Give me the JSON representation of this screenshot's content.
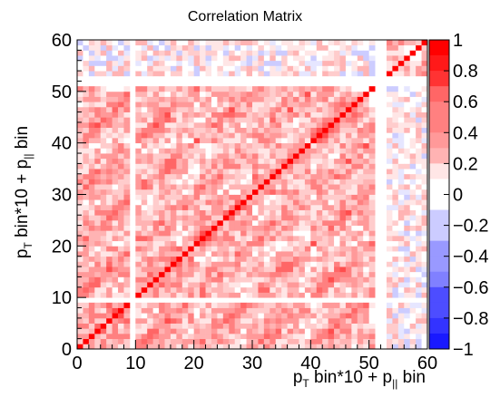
{
  "chart_data": {
    "type": "heatmap",
    "title": "Correlation Matrix",
    "xlabel": {
      "pre": "p",
      "sub1": "T",
      "mid": " bin*10 + p",
      "sub2": "||",
      "post": " bin"
    },
    "ylabel": {
      "pre": "p",
      "sub1": "T",
      "mid": " bin*10 + p",
      "sub2": "||",
      "post": " bin"
    },
    "x_ticks": [
      "0",
      "10",
      "20",
      "30",
      "40",
      "50",
      "60"
    ],
    "y_ticks": [
      "0",
      "10",
      "20",
      "30",
      "40",
      "50",
      "60"
    ],
    "xlim": [
      0,
      60
    ],
    "ylim": [
      0,
      60
    ],
    "n_bins": 60,
    "zlim": [
      -1,
      1
    ],
    "colorbar_ticks": [
      "1",
      "0.8",
      "0.6",
      "0.4",
      "0.2",
      "0",
      "−0.2",
      "−0.4",
      "−0.6",
      "−0.8",
      "−1"
    ],
    "colorscale": {
      "negative": "#0000ff",
      "zero": "#ffffff",
      "positive": "#ff0000"
    },
    "empty_bins": [
      9,
      51,
      52
    ],
    "diagonal_value": 1.0,
    "typical_offdiag_range": [
      -0.2,
      0.6
    ],
    "legend": "colorbar-right"
  }
}
